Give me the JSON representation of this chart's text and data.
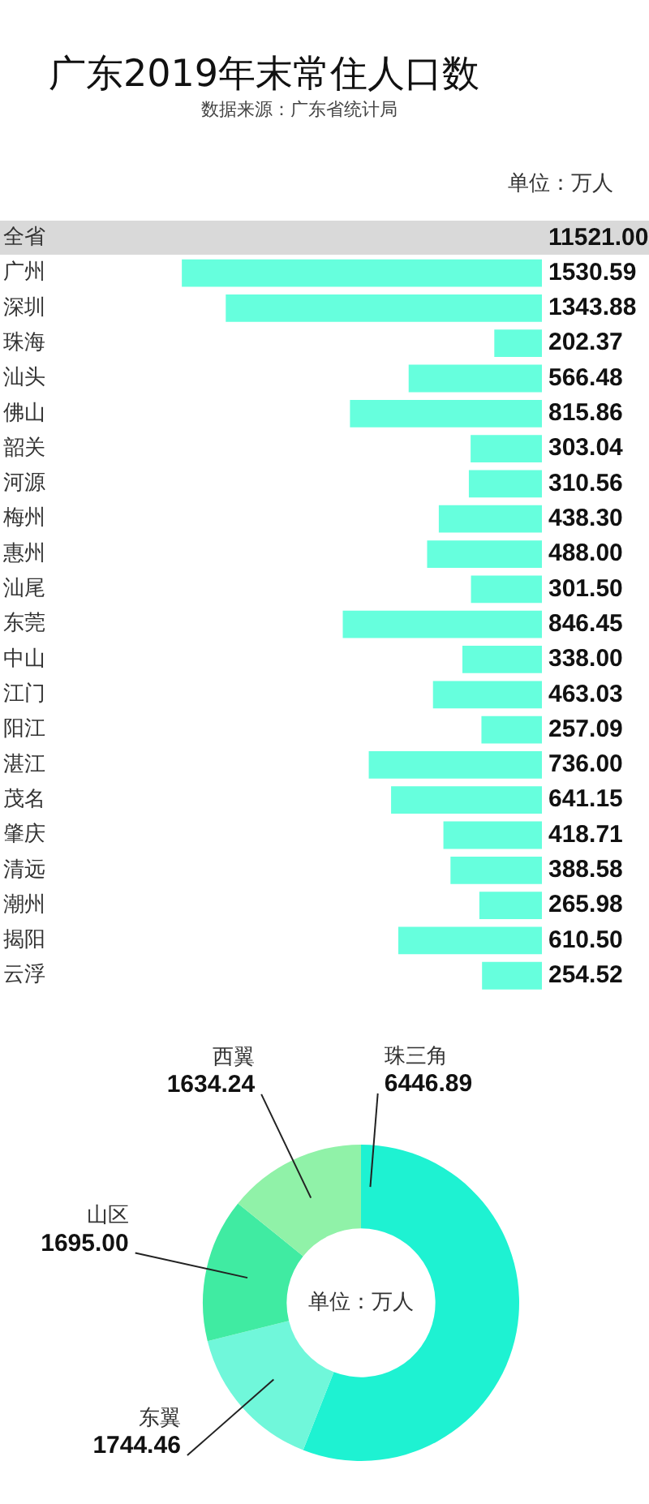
{
  "chart_data": [
    {
      "type": "bar",
      "orientation": "horizontal",
      "title": "广东2019年末常住人口数",
      "annotations": [
        "数据来源：广东省统计局",
        "单位：万人"
      ],
      "categories": [
        "全省",
        "广州",
        "深圳",
        "珠海",
        "汕头",
        "佛山",
        "韶关",
        "河源",
        "梅州",
        "惠州",
        "汕尾",
        "东莞",
        "中山",
        "江门",
        "阳江",
        "湛江",
        "茂名",
        "肇庆",
        "清远",
        "潮州",
        "揭阳",
        "云浮"
      ],
      "values": [
        null,
        1530.59,
        1343.88,
        202.37,
        566.48,
        815.86,
        303.04,
        310.56,
        438.3,
        488.0,
        301.5,
        846.45,
        338.0,
        463.03,
        257.09,
        736.0,
        641.15,
        418.71,
        388.58,
        265.98,
        610.5,
        254.52
      ],
      "value_labels": [
        "11521.00",
        "1530.59",
        "1343.88",
        "202.37",
        "566.48",
        "815.86",
        "303.04",
        "310.56",
        "438.30",
        "488.00",
        "301.50",
        "846.45",
        "338.00",
        "463.03",
        "257.09",
        "736.00",
        "641.15",
        "418.71",
        "388.58",
        "265.98",
        "610.50",
        "254.52"
      ],
      "color": "#66ffdd",
      "legend": false
    },
    {
      "type": "donut",
      "annotations": [
        "单位：万人"
      ],
      "categories": [
        "珠三角",
        "东翼",
        "山区",
        "西翼"
      ],
      "values": [
        6446.89,
        1744.46,
        1695.0,
        1634.24
      ],
      "value_labels": [
        "6446.89",
        "1744.46",
        "1695.00",
        "1634.24"
      ],
      "colors": [
        "#1ef2d2",
        "#70f7da",
        "#40eba2",
        "#90f2a8"
      ],
      "legend": false
    }
  ]
}
